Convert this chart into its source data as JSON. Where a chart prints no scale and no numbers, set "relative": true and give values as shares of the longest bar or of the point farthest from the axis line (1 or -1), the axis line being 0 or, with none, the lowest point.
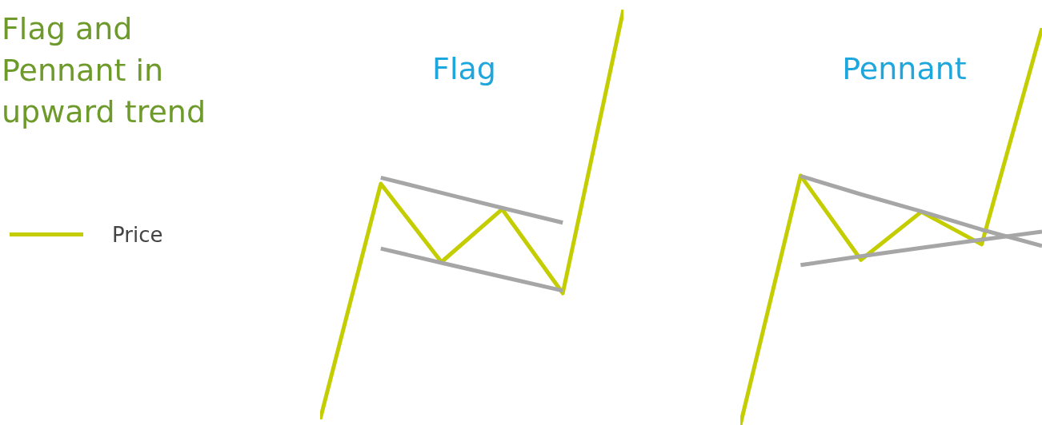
{
  "chart_data": [
    {
      "type": "other",
      "title": "Flag and Pennant in upward trend"
    },
    {
      "type": "line",
      "title": "Flag",
      "relative": true,
      "legend": "left",
      "categories": [
        null,
        null,
        null,
        null,
        null,
        null
      ],
      "series": [
        {
          "name": "Price",
          "color": "#c3cd00",
          "values": [
            0,
            0.575,
            0.384,
            0.513,
            0.308,
            1
          ]
        },
        {
          "color": "#a6a6a6",
          "values": [
            null,
            0.59,
            0.553,
            0.516,
            0.48,
            null
          ]
        },
        {
          "color": "#a6a6a6",
          "values": [
            null,
            0.417,
            0.382,
            0.348,
            0.314,
            null
          ]
        }
      ]
    },
    {
      "type": "line",
      "title": "Pennant",
      "relative": true,
      "categories": [
        null,
        null,
        null,
        null,
        null,
        null
      ],
      "series": [
        {
          "color": "#c3cd00",
          "values": [
            0,
            0.628,
            0.416,
            0.537,
            0.455,
            1
          ]
        },
        {
          "color": "#a6a6a6",
          "values": [
            null,
            0.627,
            0.581,
            0.538,
            0.492,
            0.451
          ]
        },
        {
          "color": "#a6a6a6",
          "values": [
            null,
            0.403,
            0.425,
            0.446,
            0.467,
            0.487
          ]
        }
      ]
    }
  ]
}
